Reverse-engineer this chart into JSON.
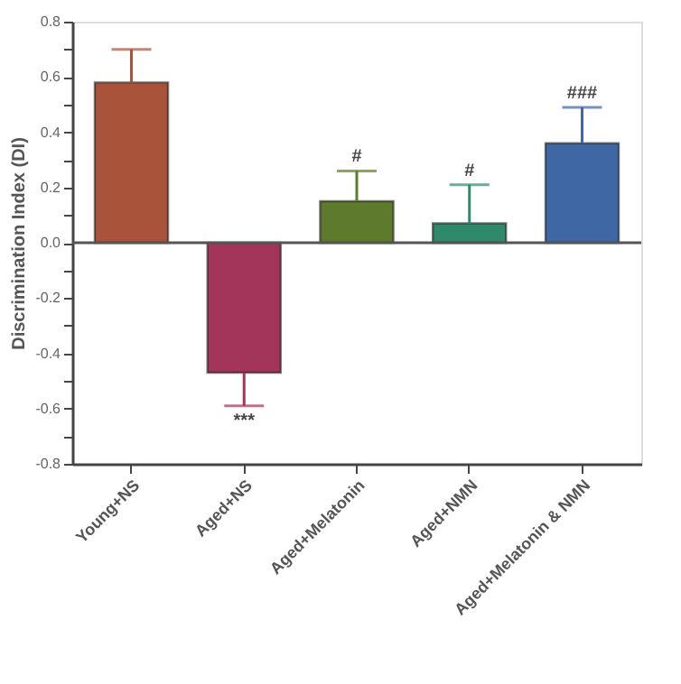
{
  "chart_data": {
    "type": "bar",
    "ylabel": "Discrimination Index (DI)",
    "categories": [
      "Young+NS",
      "Aged+NS",
      "Aged+Melatonin",
      "Aged+NMN",
      "Aged+Melatonin & NMN"
    ],
    "values": [
      0.58,
      -0.47,
      0.15,
      0.07,
      0.36
    ],
    "colors": [
      "#a9533a",
      "#a3345a",
      "#5e7a2c",
      "#2e8a6a",
      "#3f67a3"
    ],
    "errors": [
      [
        0.58,
        0.7
      ],
      [
        -0.59,
        -0.47
      ],
      [
        0.15,
        0.26
      ],
      [
        0.07,
        0.21
      ],
      [
        0.36,
        0.49
      ]
    ],
    "ylim": [
      -0.8,
      0.8
    ],
    "yticks": [
      -0.8,
      {
        "value": -0.7,
        "label": null
      },
      -0.6,
      {
        "value": -0.5,
        "label": null
      },
      -0.4,
      {
        "value": -0.3,
        "label": null
      },
      -0.2,
      {
        "value": -0.1,
        "label": null
      },
      {
        "value": 0,
        "label": "0.0"
      },
      {
        "value": 0.1,
        "label": null
      },
      0.2,
      {
        "value": 0.3,
        "label": null
      },
      0.4,
      {
        "value": 0.5,
        "label": null
      },
      0.6,
      {
        "value": 0.7,
        "label": null
      },
      0.8
    ],
    "ref_lines": [
      {
        "axis": "y",
        "value": 0,
        "color": "#555555"
      }
    ],
    "annotations": [
      {
        "text": "***",
        "x": "Aged+NS",
        "y": -0.59
      },
      {
        "text": "#",
        "x": "Aged+Melatonin",
        "y": 0.26
      },
      {
        "text": "#",
        "x": "Aged+NMN",
        "y": 0.21
      },
      {
        "text": "###",
        "x": "Aged+Melatonin & NMN",
        "y": 0.49
      }
    ],
    "grid": false
  }
}
